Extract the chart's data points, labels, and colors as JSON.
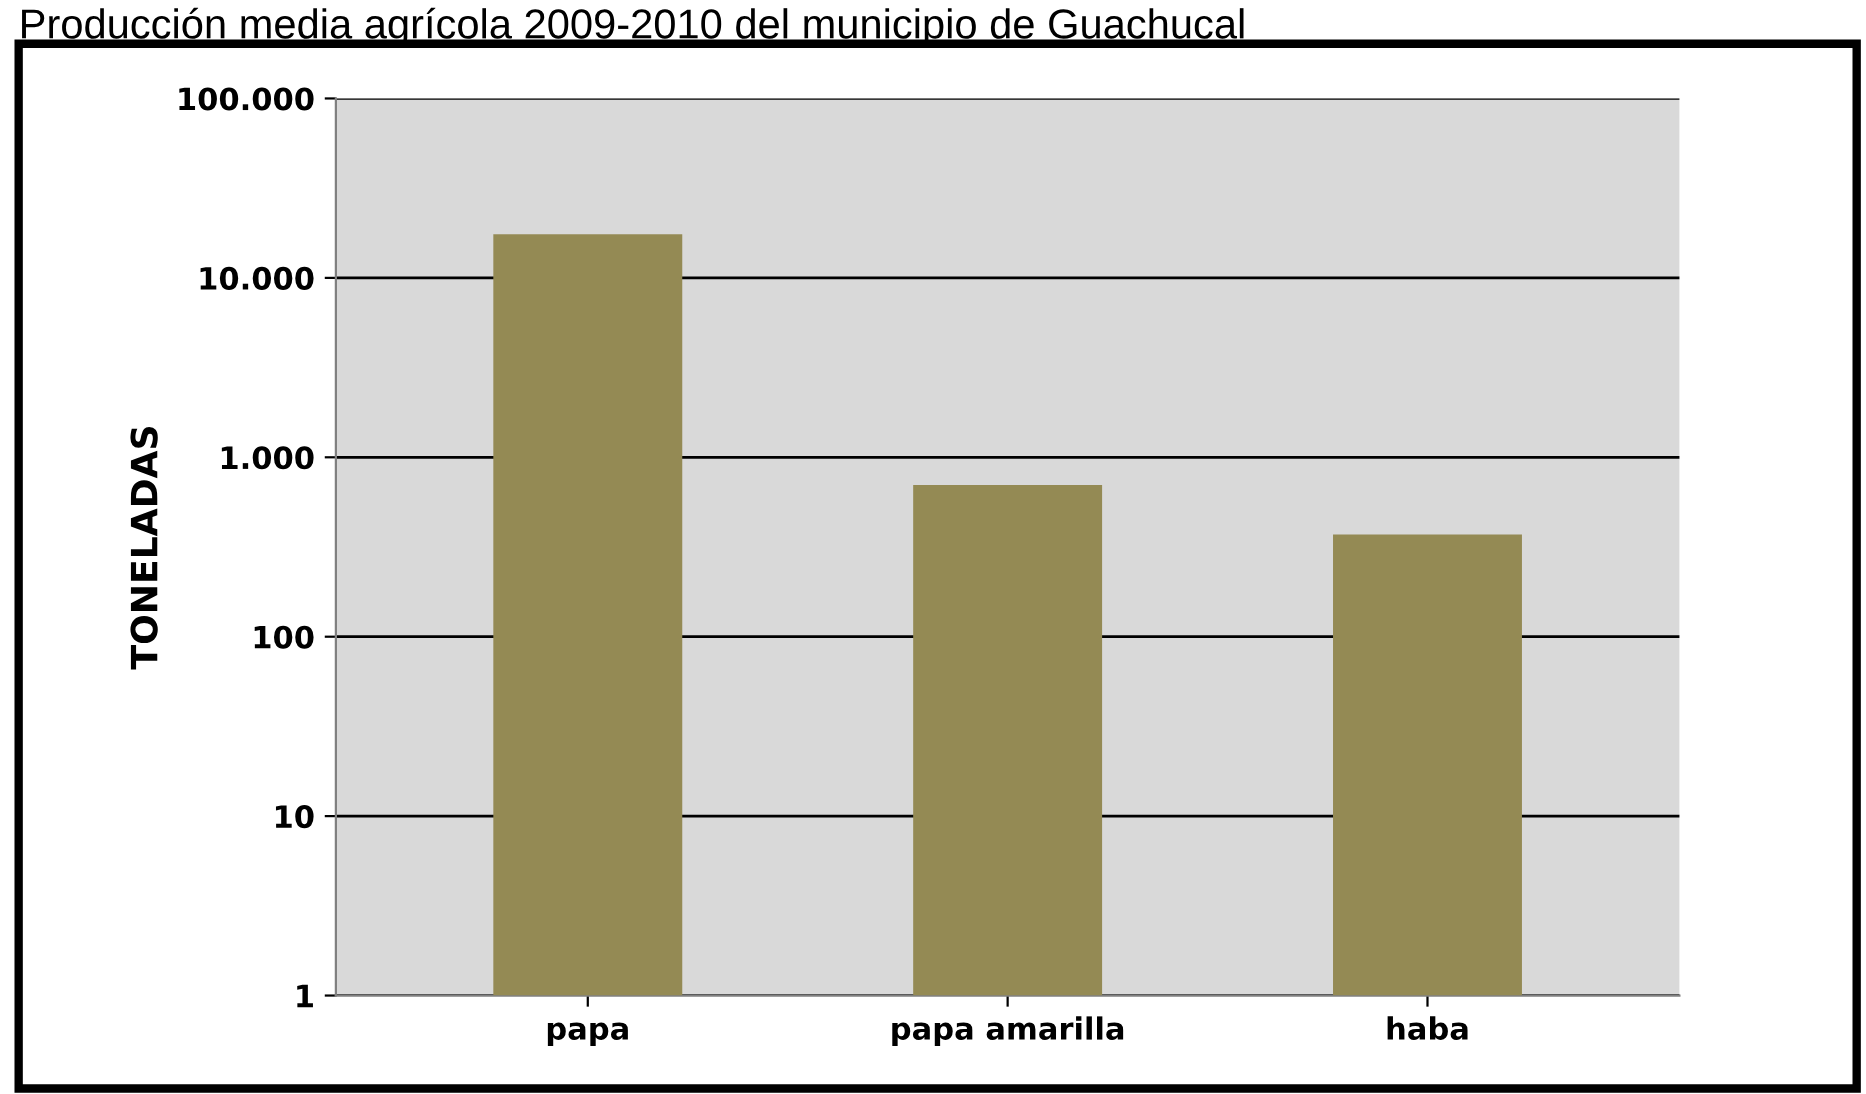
{
  "chart_data": {
    "type": "bar",
    "title": "Producción media agrícola 2009-2010 del municipio de Guachucal",
    "categories": [
      "papa",
      "papa amarilla",
      "haba"
    ],
    "values": [
      17500,
      700,
      370
    ],
    "color": "#948a54",
    "ylabel": "TONELADAS",
    "log": true,
    "ylim": [
      1,
      100000
    ],
    "yticks": [
      1,
      10,
      100,
      {
        "value": 1000,
        "label": "1.000"
      },
      {
        "value": 10000,
        "label": "10.000"
      },
      {
        "value": 100000,
        "label": "100.000"
      }
    ],
    "grid": "y"
  }
}
